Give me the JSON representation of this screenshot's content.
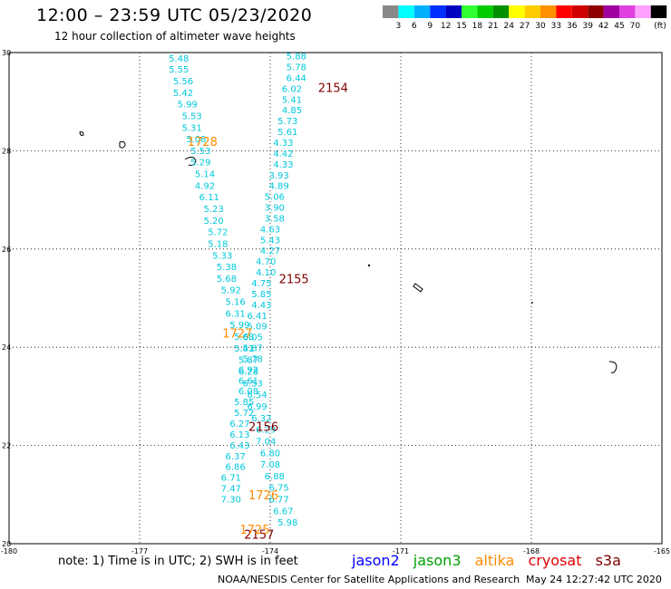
{
  "title": "12:00 – 23:59 UTC 05/23/2020",
  "subtitle": "12 hour collection of altimeter wave heights",
  "legend": {
    "unit": "(ft)",
    "items": [
      {
        "label": "",
        "color": "#888888"
      },
      {
        "label": "3",
        "color": "#00ffff"
      },
      {
        "label": "6",
        "color": "#00b0ff"
      },
      {
        "label": "9",
        "color": "#0030ff"
      },
      {
        "label": "12",
        "color": "#0000c0"
      },
      {
        "label": "15",
        "color": "#30ff30"
      },
      {
        "label": "18",
        "color": "#00cc00"
      },
      {
        "label": "21",
        "color": "#009000"
      },
      {
        "label": "24",
        "color": "#ffff00"
      },
      {
        "label": "27",
        "color": "#ffcc00"
      },
      {
        "label": "30",
        "color": "#ff9000"
      },
      {
        "label": "33",
        "color": "#ff0000"
      },
      {
        "label": "36",
        "color": "#d00000"
      },
      {
        "label": "39",
        "color": "#900000"
      },
      {
        "label": "42",
        "color": "#a000a0"
      },
      {
        "label": "45",
        "color": "#e040e0"
      },
      {
        "label": "70",
        "color": "#ffa0ff"
      },
      {
        "label": "",
        "color": "#000000"
      }
    ]
  },
  "map": {
    "lon_range": [
      -180,
      -165
    ],
    "lat_range": [
      20,
      30
    ],
    "lon_ticks": [
      "-180",
      "-177",
      "-174",
      "-171",
      "-168",
      "-165"
    ],
    "lat_ticks": [
      "20",
      "22",
      "24",
      "26",
      "28",
      "30"
    ],
    "lat_tick_values": [
      20,
      22,
      24,
      26,
      28,
      30
    ]
  },
  "colors": {
    "jason2": "#0000ff",
    "jason3": "#00a000",
    "altika": "#ff8c00",
    "cryosat": "#e00000",
    "s3a": "#800000",
    "swh_label": "#00c8dc"
  },
  "tracks": [
    {
      "satellite": "s3a",
      "readings": [
        {
          "lat": 29.82,
          "lon": -176.1,
          "swh": "5.48"
        },
        {
          "lat": 29.59,
          "lon": -176.1,
          "swh": "5.55"
        },
        {
          "lat": 29.35,
          "lon": -176.0,
          "swh": "5.56"
        },
        {
          "lat": 29.11,
          "lon": -176.0,
          "swh": "5.42"
        },
        {
          "lat": 28.88,
          "lon": -175.9,
          "swh": "5.99"
        },
        {
          "lat": 28.64,
          "lon": -175.8,
          "swh": "5.53"
        },
        {
          "lat": 28.4,
          "lon": -175.8,
          "swh": "5.31"
        },
        {
          "lat": 28.17,
          "lon": -175.7,
          "swh": "5.08"
        },
        {
          "lat": 27.93,
          "lon": -175.6,
          "swh": "5.53"
        },
        {
          "lat": 27.7,
          "lon": -175.6,
          "swh": "5.29"
        },
        {
          "lat": 27.46,
          "lon": -175.5,
          "swh": "5.14"
        },
        {
          "lat": 27.22,
          "lon": -175.5,
          "swh": "4.92"
        },
        {
          "lat": 26.99,
          "lon": -175.4,
          "swh": "6.11"
        },
        {
          "lat": 26.75,
          "lon": -175.3,
          "swh": "5.23"
        },
        {
          "lat": 26.51,
          "lon": -175.3,
          "swh": "5.20"
        },
        {
          "lat": 26.28,
          "lon": -175.2,
          "swh": "5.72"
        },
        {
          "lat": 26.04,
          "lon": -175.2,
          "swh": "5.18"
        },
        {
          "lat": 25.8,
          "lon": -175.1,
          "swh": "5.33"
        },
        {
          "lat": 25.57,
          "lon": -175.0,
          "swh": "5.38"
        },
        {
          "lat": 25.33,
          "lon": -175.0,
          "swh": "5.68"
        },
        {
          "lat": 25.1,
          "lon": -174.9,
          "swh": "5.92"
        },
        {
          "lat": 24.86,
          "lon": -174.8,
          "swh": "5.16"
        },
        {
          "lat": 24.62,
          "lon": -174.8,
          "swh": "6.31"
        },
        {
          "lat": 24.39,
          "lon": -174.7,
          "swh": "5.99"
        },
        {
          "lat": 24.15,
          "lon": -174.6,
          "swh": "5.68"
        },
        {
          "lat": 23.91,
          "lon": -174.6,
          "swh": "5.41"
        },
        {
          "lat": 23.68,
          "lon": -174.5,
          "swh": "5.87"
        },
        {
          "lat": 23.44,
          "lon": -174.5,
          "swh": "6.28"
        },
        {
          "lat": 23.2,
          "lon": -174.4,
          "swh": "6.53"
        },
        {
          "lat": 22.97,
          "lon": -174.3,
          "swh": "6.54"
        },
        {
          "lat": 22.73,
          "lon": -174.3,
          "swh": "6.99"
        },
        {
          "lat": 22.49,
          "lon": -174.2,
          "swh": "6.32"
        },
        {
          "lat": 22.26,
          "lon": -174.1,
          "swh": "6.29"
        },
        {
          "lat": 22.02,
          "lon": -174.1,
          "swh": "7.04"
        },
        {
          "lat": 21.78,
          "lon": -174.0,
          "swh": "6.80"
        },
        {
          "lat": 21.55,
          "lon": -174.0,
          "swh": "7.08"
        },
        {
          "lat": 21.31,
          "lon": -173.9,
          "swh": "6.88"
        },
        {
          "lat": 21.08,
          "lon": -173.8,
          "swh": "6.75"
        },
        {
          "lat": 20.84,
          "lon": -173.8,
          "swh": "6.77"
        },
        {
          "lat": 20.6,
          "lon": -173.7,
          "swh": "6.67"
        },
        {
          "lat": 20.37,
          "lon": -173.6,
          "swh": "5.98"
        }
      ],
      "time_labels": [
        {
          "lat": 20.1,
          "lon": -174.6,
          "time": "2157"
        }
      ]
    },
    {
      "satellite": "s3a",
      "readings": [
        {
          "lat": 29.86,
          "lon": -173.4,
          "swh": "5.88"
        },
        {
          "lat": 29.64,
          "lon": -173.4,
          "swh": "5.78"
        },
        {
          "lat": 29.42,
          "lon": -173.4,
          "swh": "6.44"
        },
        {
          "lat": 29.2,
          "lon": -173.5,
          "swh": "6.02"
        },
        {
          "lat": 28.98,
          "lon": -173.5,
          "swh": "5.41"
        },
        {
          "lat": 28.76,
          "lon": -173.5,
          "swh": "4.85"
        },
        {
          "lat": 28.54,
          "lon": -173.6,
          "swh": "5.73"
        },
        {
          "lat": 28.32,
          "lon": -173.6,
          "swh": "5.61"
        },
        {
          "lat": 28.1,
          "lon": -173.7,
          "swh": "4.33"
        },
        {
          "lat": 27.88,
          "lon": -173.7,
          "swh": "4.42"
        },
        {
          "lat": 27.66,
          "lon": -173.7,
          "swh": "4.33"
        },
        {
          "lat": 27.44,
          "lon": -173.8,
          "swh": "3.93"
        },
        {
          "lat": 27.22,
          "lon": -173.8,
          "swh": "4.89"
        },
        {
          "lat": 27.0,
          "lon": -173.9,
          "swh": "5.06"
        },
        {
          "lat": 26.78,
          "lon": -173.9,
          "swh": "3.90"
        },
        {
          "lat": 26.56,
          "lon": -173.9,
          "swh": "3.58"
        },
        {
          "lat": 26.34,
          "lon": -174.0,
          "swh": "4.63"
        },
        {
          "lat": 26.12,
          "lon": -174.0,
          "swh": "5.43"
        },
        {
          "lat": 25.9,
          "lon": -174.0,
          "swh": "4.27"
        },
        {
          "lat": 25.68,
          "lon": -174.1,
          "swh": "4.70"
        },
        {
          "lat": 25.46,
          "lon": -174.1,
          "swh": "4.10"
        },
        {
          "lat": 25.24,
          "lon": -174.2,
          "swh": "4.75"
        },
        {
          "lat": 25.02,
          "lon": -174.2,
          "swh": "5.85"
        },
        {
          "lat": 24.8,
          "lon": -174.2,
          "swh": "4.43"
        },
        {
          "lat": 24.58,
          "lon": -174.3,
          "swh": "6.41"
        },
        {
          "lat": 24.36,
          "lon": -174.3,
          "swh": "5.09"
        },
        {
          "lat": 24.14,
          "lon": -174.4,
          "swh": "6.05"
        },
        {
          "lat": 23.92,
          "lon": -174.4,
          "swh": "5.87"
        },
        {
          "lat": 23.7,
          "lon": -174.4,
          "swh": "5.78"
        },
        {
          "lat": 23.48,
          "lon": -174.5,
          "swh": "6.92"
        },
        {
          "lat": 23.26,
          "lon": -174.5,
          "swh": "6.61"
        },
        {
          "lat": 23.04,
          "lon": -174.5,
          "swh": "6.08"
        },
        {
          "lat": 22.82,
          "lon": -174.6,
          "swh": "5.85"
        },
        {
          "lat": 22.6,
          "lon": -174.6,
          "swh": "5.72"
        },
        {
          "lat": 22.38,
          "lon": -174.7,
          "swh": "6.27"
        },
        {
          "lat": 22.16,
          "lon": -174.7,
          "swh": "6.13"
        },
        {
          "lat": 21.94,
          "lon": -174.7,
          "swh": "6.43"
        },
        {
          "lat": 21.72,
          "lon": -174.8,
          "swh": "6.37"
        },
        {
          "lat": 21.5,
          "lon": -174.8,
          "swh": "6.86"
        },
        {
          "lat": 21.28,
          "lon": -174.9,
          "swh": "6.71"
        },
        {
          "lat": 21.06,
          "lon": -174.9,
          "swh": "7.47"
        },
        {
          "lat": 20.84,
          "lon": -174.9,
          "swh": "7.30"
        }
      ],
      "time_labels": [
        {
          "lat": 29.2,
          "lon": -172.9,
          "time": "2154"
        },
        {
          "lat": 25.3,
          "lon": -173.8,
          "time": "2155"
        },
        {
          "lat": 22.3,
          "lon": -174.5,
          "time": "2156"
        }
      ]
    },
    {
      "satellite": "altika",
      "readings": [],
      "time_labels": [
        {
          "lat": 28.1,
          "lon": -175.9,
          "time": "1728"
        },
        {
          "lat": 24.2,
          "lon": -175.1,
          "time": "1727"
        },
        {
          "lat": 20.9,
          "lon": -174.5,
          "time": "1726"
        },
        {
          "lat": 20.2,
          "lon": -174.7,
          "time": "1725"
        }
      ]
    }
  ],
  "note": "note: 1) Time is in UTC; 2) SWH is in feet",
  "satellites": [
    {
      "name": "jason2",
      "color": "#0000ff"
    },
    {
      "name": "jason3",
      "color": "#00a000"
    },
    {
      "name": "altika",
      "color": "#ff8c00"
    },
    {
      "name": "cryosat",
      "color": "#e00000"
    },
    {
      "name": "s3a",
      "color": "#800000"
    }
  ],
  "credit": "NOAA/NESDIS Center for Satellite Applications and Research",
  "timestamp": "May 24 12:27:42 UTC 2020"
}
